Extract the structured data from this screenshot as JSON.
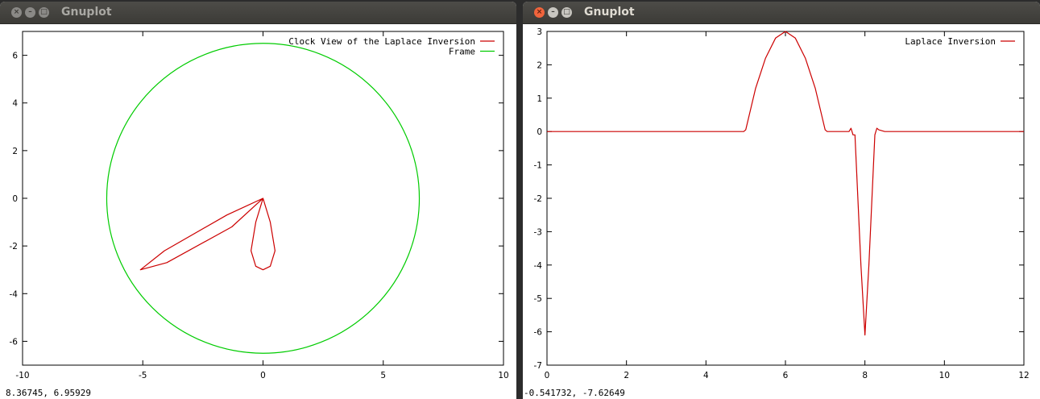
{
  "windows": [
    {
      "title": "Gnuplot",
      "status": "8.36745,  6.95929"
    },
    {
      "title": "Gnuplot",
      "status": "-0.541732, -7.62649"
    }
  ],
  "window_buttons": {
    "close_glyph": "×",
    "min_glyph": "–",
    "max_glyph": "□"
  },
  "colors": {
    "series_red": "#cc0000",
    "series_green": "#00cc00"
  },
  "chart_data": [
    {
      "type": "line",
      "title": "",
      "xlabel": "",
      "ylabel": "",
      "xlim": [
        -10,
        10
      ],
      "ylim": [
        -7,
        7
      ],
      "xticks": [
        "-10",
        "-5",
        "0",
        "5",
        "10"
      ],
      "yticks": [
        "-6",
        "-4",
        "-2",
        "0",
        "2",
        "4",
        "6"
      ],
      "legend_position": "top-right",
      "grid": false,
      "series": [
        {
          "name": "Clock View of the Laplace Inversion",
          "color": "#cc0000",
          "x": [
            0,
            -1.5,
            -4.1,
            -5.1,
            -4,
            -1.3,
            0,
            -0.3,
            -0.5,
            -0.3,
            0,
            0.3,
            0.5,
            0.3,
            0
          ],
          "y": [
            0,
            -0.7,
            -2.2,
            -3.0,
            -2.7,
            -1.2,
            0,
            -1.0,
            -2.2,
            -2.85,
            -3.0,
            -2.85,
            -2.2,
            -1.0,
            0
          ]
        },
        {
          "name": "Frame",
          "color": "#00cc00",
          "shape": "circle",
          "radius": 6.5
        }
      ]
    },
    {
      "type": "line",
      "title": "",
      "xlabel": "",
      "ylabel": "",
      "xlim": [
        0,
        12
      ],
      "ylim": [
        -7,
        3
      ],
      "xticks": [
        "0",
        "2",
        "4",
        "6",
        "8",
        "10",
        "12"
      ],
      "yticks": [
        "3",
        "2",
        "1",
        "0",
        "-1",
        "-2",
        "-3",
        "-4",
        "-5",
        "-6",
        "-7"
      ],
      "legend_position": "top-right",
      "grid": false,
      "series": [
        {
          "name": "Laplace Inversion",
          "color": "#cc0000",
          "x": [
            0,
            4.95,
            5.0,
            5.25,
            5.5,
            5.75,
            6.0,
            6.25,
            6.5,
            6.75,
            7.0,
            7.05,
            7.6,
            7.65,
            7.7,
            7.75,
            7.9,
            8.0,
            8.1,
            8.25,
            8.3,
            8.35,
            8.5,
            9.0,
            10.0,
            11.0,
            12.0
          ],
          "y": [
            0,
            0,
            0.05,
            1.3,
            2.2,
            2.8,
            3.0,
            2.8,
            2.2,
            1.3,
            0.05,
            0,
            0,
            0.1,
            -0.1,
            -0.1,
            -4.0,
            -6.1,
            -4.0,
            -0.1,
            0.1,
            0.05,
            0,
            0,
            0,
            0,
            0
          ]
        }
      ]
    }
  ]
}
